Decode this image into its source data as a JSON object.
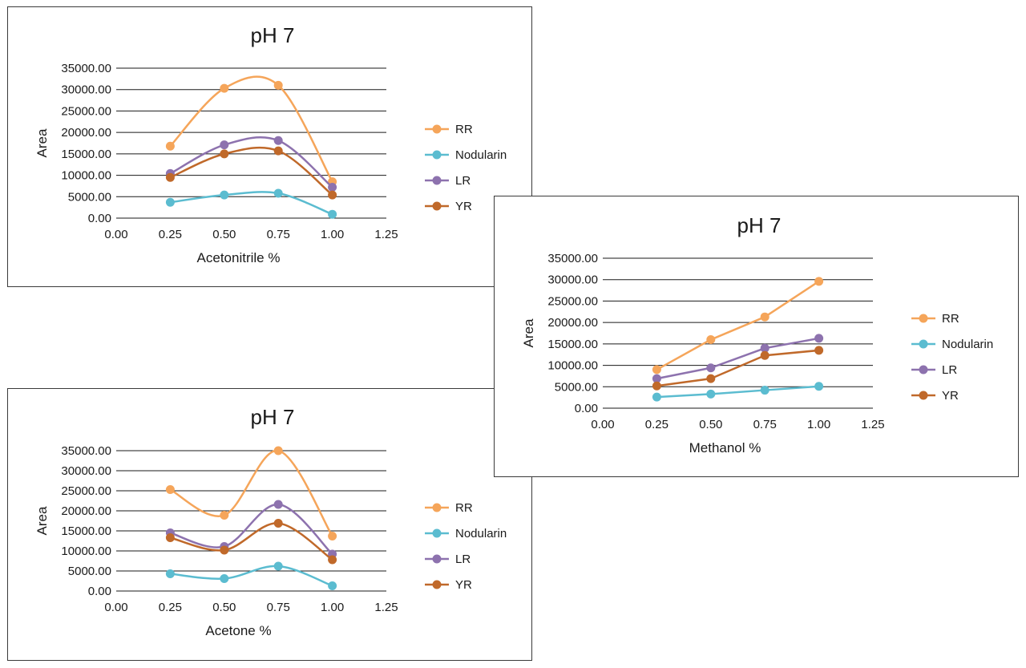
{
  "colors": {
    "RR": "#F5A55A",
    "Nodularin": "#5BBCD0",
    "LR": "#8D72AE",
    "YR": "#C0692A",
    "grid": "#1a1a1a"
  },
  "chart_data": [
    {
      "id": "acetonitrile",
      "type": "line",
      "smooth": true,
      "title": "pH 7",
      "xlabel": "Acetonitrile %",
      "ylabel": "Area",
      "xlim": [
        0,
        1.25
      ],
      "ylim": [
        0,
        35000
      ],
      "x_ticks": [
        0,
        0.25,
        0.5,
        0.75,
        1.0,
        1.25
      ],
      "x_tick_labels": [
        "0.00",
        "0.25",
        "0.50",
        "0.75",
        "1.00",
        "1.25"
      ],
      "y_ticks": [
        0,
        5000,
        10000,
        15000,
        20000,
        25000,
        30000,
        35000
      ],
      "y_tick_labels": [
        "0.00",
        "5000.00",
        "10000.00",
        "15000.00",
        "20000.00",
        "25000.00",
        "30000.00",
        "35000.00"
      ],
      "grid": true,
      "legend_position": "right",
      "x": [
        0.25,
        0.5,
        0.75,
        1.0
      ],
      "series": [
        {
          "name": "RR",
          "values": [
            16800,
            30300,
            31000,
            8500
          ]
        },
        {
          "name": "Nodularin",
          "values": [
            3700,
            5400,
            5800,
            900
          ]
        },
        {
          "name": "LR",
          "values": [
            10400,
            17100,
            18100,
            7200
          ]
        },
        {
          "name": "YR",
          "values": [
            9500,
            15000,
            15700,
            5400
          ]
        }
      ]
    },
    {
      "id": "methanol",
      "type": "line",
      "smooth": false,
      "title": "pH 7",
      "xlabel": "Methanol %",
      "ylabel": "Area",
      "xlim": [
        0,
        1.25
      ],
      "ylim": [
        0,
        35000
      ],
      "x_ticks": [
        0,
        0.25,
        0.5,
        0.75,
        1.0,
        1.25
      ],
      "x_tick_labels": [
        "0.00",
        "0.25",
        "0.50",
        "0.75",
        "1.00",
        "1.25"
      ],
      "y_ticks": [
        0,
        5000,
        10000,
        15000,
        20000,
        25000,
        30000,
        35000
      ],
      "y_tick_labels": [
        "0.00",
        "5000.00",
        "10000.00",
        "15000.00",
        "20000.00",
        "25000.00",
        "30000.00",
        "35000.00"
      ],
      "grid": true,
      "legend_position": "right",
      "x": [
        0.25,
        0.5,
        0.75,
        1.0
      ],
      "series": [
        {
          "name": "RR",
          "values": [
            9000,
            16000,
            21300,
            29600
          ]
        },
        {
          "name": "Nodularin",
          "values": [
            2600,
            3300,
            4200,
            5100
          ]
        },
        {
          "name": "LR",
          "values": [
            6900,
            9400,
            14000,
            16300
          ]
        },
        {
          "name": "YR",
          "values": [
            5200,
            6900,
            12300,
            13500
          ]
        }
      ]
    },
    {
      "id": "acetone",
      "type": "line",
      "smooth": true,
      "title": "pH 7",
      "xlabel": "Acetone %",
      "ylabel": "Area",
      "xlim": [
        0,
        1.25
      ],
      "ylim": [
        0,
        35000
      ],
      "x_ticks": [
        0,
        0.25,
        0.5,
        0.75,
        1.0,
        1.25
      ],
      "x_tick_labels": [
        "0.00",
        "0.25",
        "0.50",
        "0.75",
        "1.00",
        "1.25"
      ],
      "y_ticks": [
        0,
        5000,
        10000,
        15000,
        20000,
        25000,
        30000,
        35000
      ],
      "y_tick_labels": [
        "0.00",
        "5000.00",
        "10000.00",
        "15000.00",
        "20000.00",
        "25000.00",
        "30000.00",
        "35000.00"
      ],
      "grid": true,
      "legend_position": "right",
      "x": [
        0.25,
        0.5,
        0.75,
        1.0
      ],
      "series": [
        {
          "name": "RR",
          "values": [
            25300,
            18900,
            35000,
            13700
          ]
        },
        {
          "name": "Nodularin",
          "values": [
            4300,
            3100,
            6200,
            1300
          ]
        },
        {
          "name": "LR",
          "values": [
            14500,
            11100,
            21600,
            9200
          ]
        },
        {
          "name": "YR",
          "values": [
            13300,
            10200,
            16900,
            7800
          ]
        }
      ]
    }
  ]
}
